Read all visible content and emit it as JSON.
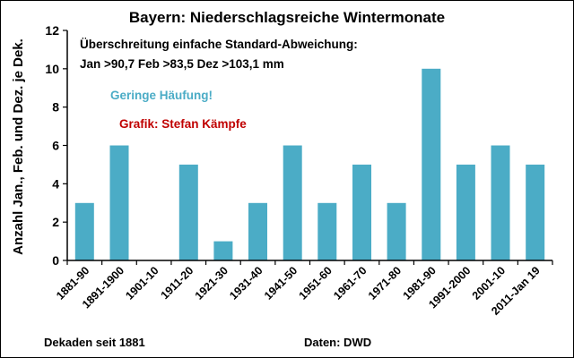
{
  "chart_data": {
    "type": "bar",
    "title": "Bayern: Niederschlagsreiche Wintermonate",
    "ylabel": "Anzahl Jan., Feb. und Dez. je Dek.",
    "ylim": [
      0,
      12
    ],
    "yticks": [
      0,
      2,
      4,
      6,
      8,
      10,
      12
    ],
    "categories": [
      "1881-90",
      "1891-1900",
      "1901-10",
      "1911-20",
      "1921-30",
      "1931-40",
      "1941-50",
      "1951-60",
      "1961-70",
      "1971-80",
      "1981-90",
      "1991-2000",
      "2001-10",
      "2011-Jan 19"
    ],
    "values": [
      3,
      6,
      0,
      5,
      1,
      3,
      6,
      3,
      5,
      3,
      10,
      5,
      6,
      5
    ],
    "bar_color": "#4bacc6",
    "grid": false,
    "annotations": {
      "line1": "Überschreitung einfache Standard-Abweichung:",
      "line2": "Jan >90,7 Feb >83,5 Dez >103,1 mm",
      "accumulation": "Geringe Häufung!",
      "accumulation_color": "#4bacc6",
      "credit": "Grafik: Stefan Kämpfe",
      "credit_color": "#c00000"
    },
    "footer_left": "Dekaden seit 1881",
    "footer_center": "Daten: DWD"
  }
}
